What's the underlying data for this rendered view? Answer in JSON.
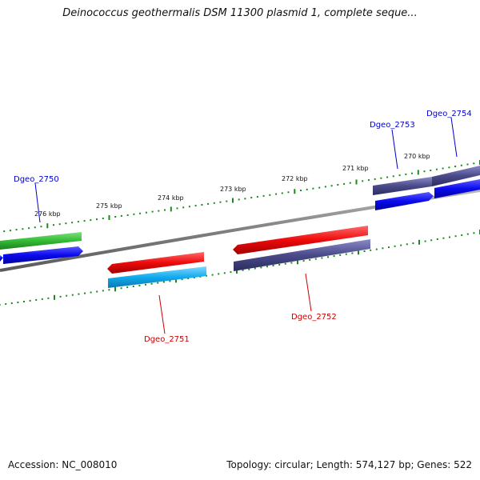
{
  "title": "Deinococcus geothermalis DSM 11300 plasmid 1, complete seque...",
  "footer": {
    "accession_label": "Accession:",
    "accession": "NC_008010",
    "topology_label": "Topology:",
    "topology": "circular",
    "length_label": "Length:",
    "length": "574,127 bp",
    "genes_label": "Genes:",
    "genes": "522"
  },
  "ticks": [
    "276 kbp",
    "275 kbp",
    "274 kbp",
    "273 kbp",
    "272 kbp",
    "271 kbp",
    "270 kbp"
  ],
  "genes": [
    {
      "name": "Dgeo_2750",
      "color": "#0000cc"
    },
    {
      "name": "Dgeo_2751",
      "color": "#cc0000"
    },
    {
      "name": "Dgeo_2752",
      "color": "#cc0000"
    },
    {
      "name": "Dgeo_2753",
      "color": "#0000cc"
    },
    {
      "name": "Dgeo_2754",
      "color": "#0000cc"
    }
  ],
  "colors": {
    "backbone": "#808080",
    "ticks": "#1a8a1a",
    "forward_cds": "#0a0aee",
    "reverse_cds": "#ee0a0a",
    "green_feature": "#33bb33",
    "cyan_feature": "#11aaee",
    "purple_feature": "#4a4a8a"
  }
}
